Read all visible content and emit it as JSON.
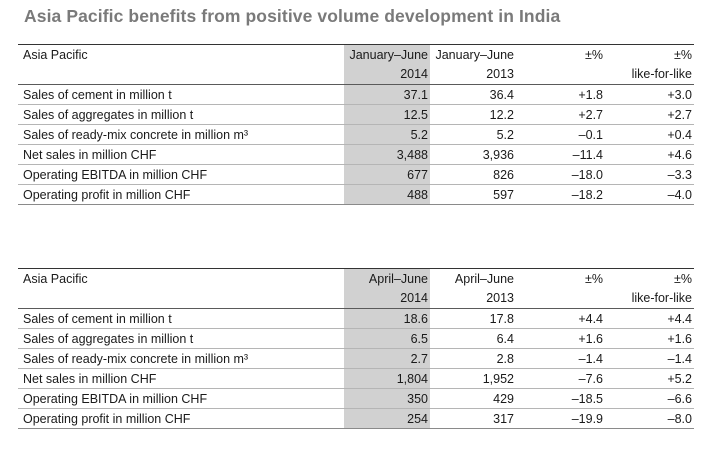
{
  "title": "Asia Pacific benefits from positive volume development in India",
  "tables": [
    {
      "label": "Asia Pacific",
      "col_a_period": "January–June",
      "col_a_year": "2014",
      "col_b_period": "January–June",
      "col_b_year": "2013",
      "col_c_head": "±%",
      "col_d_head": "±%",
      "col_d_sub": "like-for-like",
      "rows": [
        {
          "label": "Sales of cement in million t",
          "a": "37.1",
          "b": "36.4",
          "c": "+1.8",
          "d": "+3.0"
        },
        {
          "label": "Sales of aggregates in million t",
          "a": "12.5",
          "b": "12.2",
          "c": "+2.7",
          "d": "+2.7"
        },
        {
          "label": "Sales of ready-mix concrete in million m³",
          "a": "5.2",
          "b": "5.2",
          "c": "–0.1",
          "d": "+0.4"
        },
        {
          "label": "Net sales in million CHF",
          "a": "3,488",
          "b": "3,936",
          "c": "–11.4",
          "d": "+4.6"
        },
        {
          "label": "Operating EBITDA in million CHF",
          "a": "677",
          "b": "826",
          "c": "–18.0",
          "d": "–3.3"
        },
        {
          "label": "Operating profit in million CHF",
          "a": "488",
          "b": "597",
          "c": "–18.2",
          "d": "–4.0"
        }
      ]
    },
    {
      "label": "Asia Pacific",
      "col_a_period": "April–June",
      "col_a_year": "2014",
      "col_b_period": "April–June",
      "col_b_year": "2013",
      "col_c_head": "±%",
      "col_d_head": "±%",
      "col_d_sub": "like-for-like",
      "rows": [
        {
          "label": "Sales of cement in million t",
          "a": "18.6",
          "b": "17.8",
          "c": "+4.4",
          "d": "+4.4"
        },
        {
          "label": "Sales of aggregates in million t",
          "a": "6.5",
          "b": "6.4",
          "c": "+1.6",
          "d": "+1.6"
        },
        {
          "label": "Sales of ready-mix concrete in million m³",
          "a": "2.7",
          "b": "2.8",
          "c": "–1.4",
          "d": "–1.4"
        },
        {
          "label": "Net sales in million CHF",
          "a": "1,804",
          "b": "1,952",
          "c": "–7.6",
          "d": "+5.2"
        },
        {
          "label": "Operating EBITDA in million CHF",
          "a": "350",
          "b": "429",
          "c": "–18.5",
          "d": "–6.6"
        },
        {
          "label": "Operating profit in million CHF",
          "a": "254",
          "b": "317",
          "c": "–19.9",
          "d": "–8.0"
        }
      ]
    }
  ]
}
